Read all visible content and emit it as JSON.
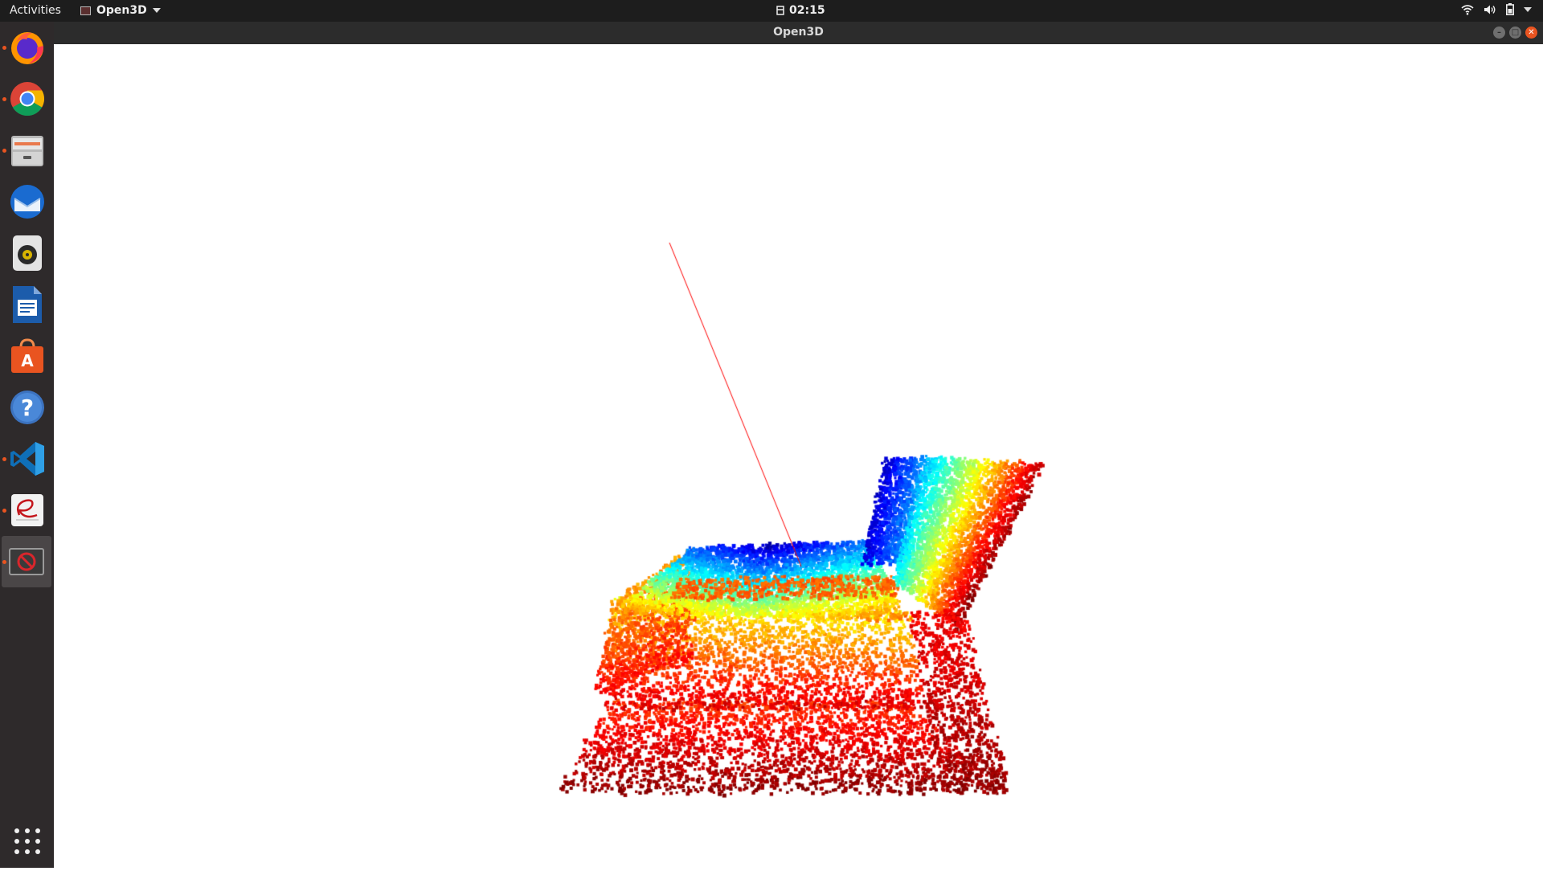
{
  "topbar": {
    "activities_label": "Activities",
    "app_menu_label": "Open3D",
    "clock": "02:15"
  },
  "window": {
    "title": "Open3D"
  },
  "dock": {
    "items": [
      {
        "name": "Firefox Web Browser",
        "icon": "firefox-icon",
        "running": true
      },
      {
        "name": "Google Chrome",
        "icon": "chrome-icon",
        "running": true
      },
      {
        "name": "Files",
        "icon": "files-icon",
        "running": true
      },
      {
        "name": "Thunderbird Mail",
        "icon": "thunderbird-icon",
        "running": false
      },
      {
        "name": "Rhythmbox",
        "icon": "rhythmbox-icon",
        "running": false
      },
      {
        "name": "LibreOffice Writer",
        "icon": "writer-icon",
        "running": false
      },
      {
        "name": "Ubuntu Software",
        "icon": "software-icon",
        "running": false
      },
      {
        "name": "Help",
        "icon": "help-icon",
        "running": false
      },
      {
        "name": "Visual Studio Code",
        "icon": "vscode-icon",
        "running": true
      },
      {
        "name": "Document Viewer",
        "icon": "evince-icon",
        "running": true
      },
      {
        "name": "Open3D",
        "icon": "open3d-window-icon",
        "running": true,
        "active": true
      }
    ],
    "show_apps": "show-applications-icon"
  },
  "viewer": {
    "object": "colored point cloud of a sofa",
    "colormap": "jet",
    "normal_line_color": "#ff0000",
    "background": "#ffffff"
  },
  "colors": {
    "accent": "#e95420",
    "topbar_bg": "#1d1d1d",
    "dock_bg": "#2e2a2b"
  }
}
